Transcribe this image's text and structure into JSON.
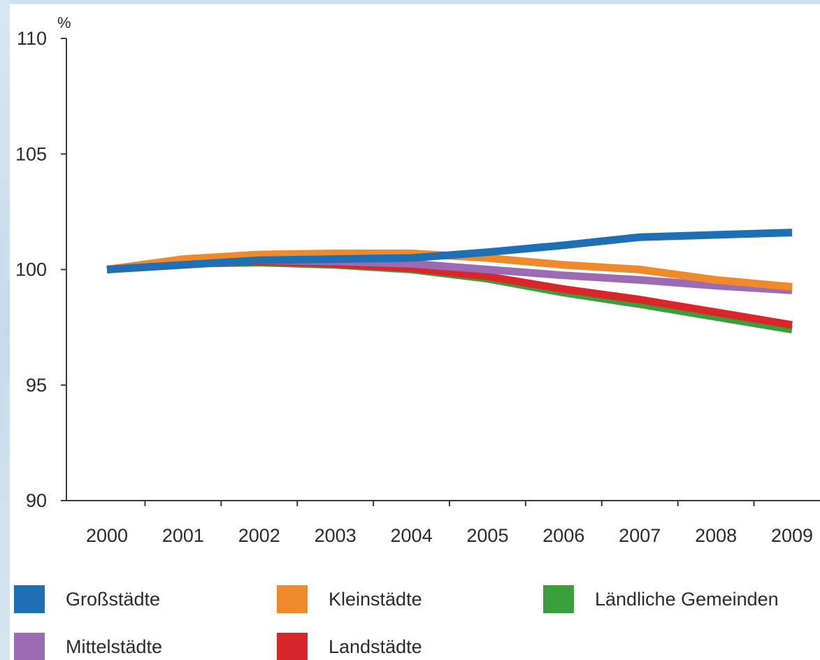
{
  "chart_data": {
    "type": "line",
    "unit": "%",
    "x": [
      "2000",
      "2001",
      "2002",
      "2003",
      "2004",
      "2005",
      "2006",
      "2007",
      "2008",
      "2009"
    ],
    "ylim": [
      90,
      110
    ],
    "yticks": [
      "90",
      "95",
      "100",
      "105",
      "110"
    ],
    "grid": false,
    "legend_position": "bottom",
    "series": [
      {
        "name": "Großstädte",
        "color": "#1f6fb5",
        "values": [
          100.0,
          100.2,
          100.4,
          100.45,
          100.5,
          100.75,
          101.05,
          101.4,
          101.5,
          101.6
        ]
      },
      {
        "name": "Kleinstädte",
        "color": "#ee8a2b",
        "values": [
          100.0,
          100.45,
          100.65,
          100.7,
          100.7,
          100.5,
          100.2,
          100.0,
          99.55,
          99.25
        ]
      },
      {
        "name": "Ländliche Gemeinden",
        "color": "#3a9f3a",
        "values": [
          100.0,
          100.25,
          100.3,
          100.2,
          100.0,
          99.6,
          99.0,
          98.5,
          97.95,
          97.4
        ]
      },
      {
        "name": "Mittelstädte",
        "color": "#9b6bb3",
        "values": [
          100.0,
          100.3,
          100.4,
          100.35,
          100.25,
          100.0,
          99.75,
          99.55,
          99.3,
          99.1
        ]
      },
      {
        "name": "Landstädte",
        "color": "#d9262b",
        "values": [
          100.0,
          100.25,
          100.35,
          100.25,
          100.05,
          99.7,
          99.15,
          98.7,
          98.15,
          97.6
        ]
      }
    ]
  }
}
